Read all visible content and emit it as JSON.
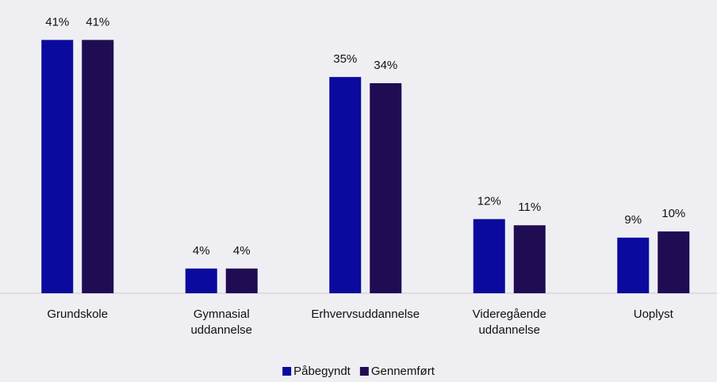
{
  "chart_data": {
    "type": "bar",
    "categories": [
      "Grundskole",
      "Gymnasial uddannelse",
      "Erhvervsuddannelse",
      "Videregående uddannelse",
      "Uoplyst"
    ],
    "series": [
      {
        "name": "Påbegyndt",
        "color": "#0a0a9e",
        "values": [
          41,
          4,
          35,
          12,
          9
        ],
        "value_labels": [
          "41%",
          "4%",
          "35%",
          "12%",
          "9%"
        ]
      },
      {
        "name": "Gennemført",
        "color": "#1f0c52",
        "values": [
          41,
          4,
          34,
          11,
          10
        ],
        "value_labels": [
          "41%",
          "4%",
          "34%",
          "11%",
          "10%"
        ]
      }
    ],
    "ylim": [
      0,
      44
    ],
    "legend": "bottom"
  }
}
